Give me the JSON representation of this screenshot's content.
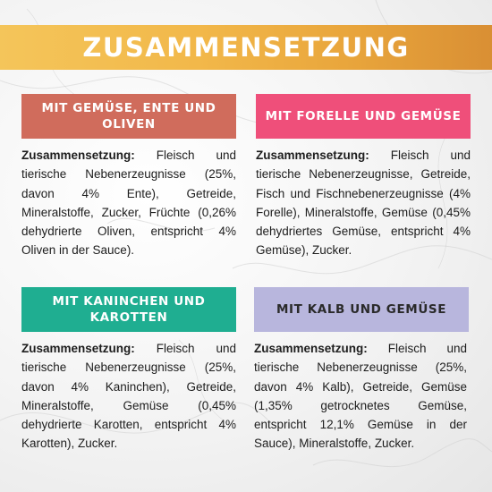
{
  "title": "ZUSAMMENSETZUNG",
  "colors": {
    "banner": "#f2b84a",
    "card1": "#d06c5c",
    "card2": "#ef4f7a",
    "card3": "#1fae91",
    "card4": "#b8b6dd"
  },
  "cards": [
    {
      "header": "MIT GEMÜSE, ENTE UND OLIVEN",
      "label": "Zusammensetzung:",
      "text": "Fleisch und tierische Nebenerzeugnisse (25%, davon 4% Ente), Getreide, Mineralstoffe, Zucker, Früchte (0,26% dehydrierte Oliven, entspricht 4% Oliven in der Sauce)."
    },
    {
      "header": "MIT FORELLE UND GEMÜSE",
      "label": "Zusammensetzung:",
      "text": "Fleisch und tierische Nebenerzeugnisse, Getreide, Fisch und Fischnebenerzeugnisse (4% Forelle), Mineralstoffe, Gemüse (0,45% dehydriertes Gemüse, entspricht 4% Gemüse), Zucker."
    },
    {
      "header": "MIT KANINCHEN UND KAROTTEN",
      "label": "Zusammensetzung:",
      "text": "Fleisch und tierische Nebenerzeugnisse (25%, davon 4% Kaninchen), Getreide, Mineralstoffe, Gemüse (0,45% dehydrierte Karotten, entspricht 4% Karotten), Zucker."
    },
    {
      "header": "MIT KALB UND GEMÜSE",
      "label": "Zusammensetzung:",
      "text": "Fleisch und tierische Nebenerzeugnisse (25%, davon 4% Kalb), Getreide, Gemüse (1,35% getrocknetes Gemüse, entspricht 12,1% Gemüse in der Sauce), Mineralstoffe, Zucker."
    }
  ]
}
